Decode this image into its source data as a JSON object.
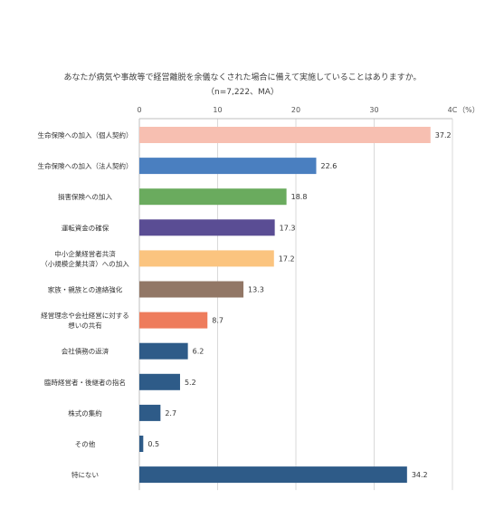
{
  "chart_data": {
    "type": "bar",
    "orientation": "horizontal",
    "title": "あなたが病気や事故等で経営離脱を余儀なくされた場合に備えて実施していることはありますか。",
    "subtitle": "（n=7,222、MA）",
    "unit_label": "（%）",
    "xlim": [
      0,
      40
    ],
    "ticks": [
      "0",
      "10",
      "20",
      "30",
      "4C"
    ],
    "tick_values": [
      0,
      10,
      20,
      30,
      40
    ],
    "grid": true,
    "categories": [
      [
        "生命保険への加入（個人契約）"
      ],
      [
        "生命保険への加入（法人契約）"
      ],
      [
        "損害保険への加入"
      ],
      [
        "運転資金の確保"
      ],
      [
        "中小企業経営者共済",
        "（小規模企業共済）への加入"
      ],
      [
        "家族・親族との連絡強化"
      ],
      [
        "経営理念や会社経営に対する",
        "想いの共有"
      ],
      [
        "会社債務の返済"
      ],
      [
        "臨時経営者・後継者の指名"
      ],
      [
        "株式の集約"
      ],
      [
        "その他"
      ],
      [
        "特にない"
      ]
    ],
    "values": [
      37.2,
      22.6,
      18.8,
      17.3,
      17.2,
      13.3,
      8.7,
      6.2,
      5.2,
      2.7,
      0.5,
      34.2
    ],
    "value_labels": [
      "37.2",
      "22.6",
      "18.8",
      "17.3",
      "17.2",
      "13.3",
      "8.7",
      "6.2",
      "5.2",
      "2.7",
      "0.5",
      "34.2"
    ],
    "colors": [
      "#f7bfb1",
      "#4a7fc0",
      "#6aab5e",
      "#5a4d94",
      "#fbc47f",
      "#927766",
      "#ee7c5c",
      "#2e5b88",
      "#2e5b88",
      "#2e5b88",
      "#2e5b88",
      "#2e5b88"
    ]
  }
}
